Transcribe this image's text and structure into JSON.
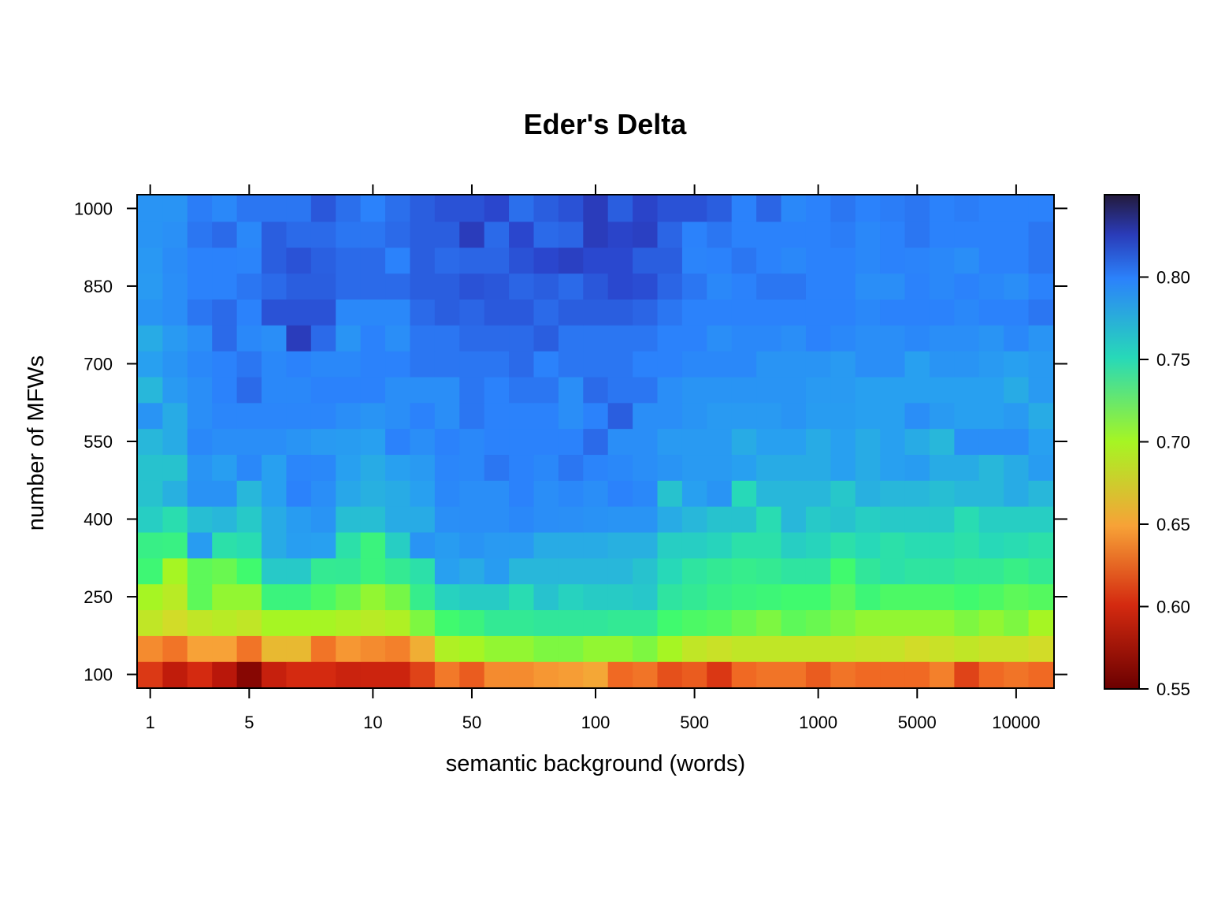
{
  "chart_data": {
    "type": "heatmap",
    "title": "Eder's Delta",
    "xlabel": "semantic background (words)",
    "ylabel": "number of MFWs",
    "x_ticks": [
      {
        "label": "1",
        "col": 0.5
      },
      {
        "label": "5",
        "col": 4.5
      },
      {
        "label": "10",
        "col": 9.5
      },
      {
        "label": "50",
        "col": 13.5
      },
      {
        "label": "100",
        "col": 18.5
      },
      {
        "label": "500",
        "col": 22.5
      },
      {
        "label": "1000",
        "col": 27.5
      },
      {
        "label": "5000",
        "col": 31.5
      },
      {
        "label": "10000",
        "col": 35.5
      }
    ],
    "y_ticks": [
      {
        "label": "100",
        "value": 100
      },
      {
        "label": "250",
        "value": 250
      },
      {
        "label": "400",
        "value": 400
      },
      {
        "label": "550",
        "value": 550
      },
      {
        "label": "700",
        "value": 700
      },
      {
        "label": "850",
        "value": 850
      },
      {
        "label": "1000",
        "value": 1000
      }
    ],
    "n_cols": 37,
    "y_values": [
      100,
      150,
      200,
      250,
      300,
      350,
      400,
      450,
      500,
      550,
      600,
      650,
      700,
      750,
      800,
      850,
      900,
      950,
      1000
    ],
    "ylim": [
      75,
      1025
    ],
    "colorbar": {
      "range": [
        0.55,
        0.85
      ],
      "ticks": [
        0.55,
        0.6,
        0.65,
        0.7,
        0.75,
        0.8
      ],
      "tick_labels": [
        "0.55",
        "0.60",
        "0.65",
        "0.70",
        "0.75",
        "0.80"
      ]
    },
    "values": [
      [
        0.606,
        0.585,
        0.6,
        0.58,
        0.56,
        0.59,
        0.6,
        0.6,
        0.593,
        0.594,
        0.594,
        0.61,
        0.632,
        0.62,
        0.64,
        0.64,
        0.645,
        0.648,
        0.652,
        0.625,
        0.63,
        0.615,
        0.62,
        0.605,
        0.625,
        0.63,
        0.63,
        0.62,
        0.63,
        0.625,
        0.625,
        0.625,
        0.635,
        0.61,
        0.625,
        0.63,
        0.625
      ],
      [
        0.64,
        0.63,
        0.65,
        0.65,
        0.63,
        0.66,
        0.66,
        0.63,
        0.645,
        0.64,
        0.635,
        0.655,
        0.695,
        0.7,
        0.705,
        0.705,
        0.71,
        0.71,
        0.705,
        0.705,
        0.71,
        0.7,
        0.685,
        0.68,
        0.685,
        0.685,
        0.685,
        0.685,
        0.685,
        0.682,
        0.682,
        0.675,
        0.68,
        0.685,
        0.68,
        0.68,
        0.675
      ],
      [
        0.685,
        0.675,
        0.685,
        0.69,
        0.685,
        0.7,
        0.7,
        0.7,
        0.695,
        0.69,
        0.695,
        0.71,
        0.725,
        0.73,
        0.738,
        0.738,
        0.74,
        0.74,
        0.74,
        0.738,
        0.738,
        0.725,
        0.722,
        0.72,
        0.715,
        0.71,
        0.718,
        0.715,
        0.71,
        0.705,
        0.705,
        0.705,
        0.705,
        0.71,
        0.705,
        0.71,
        0.7
      ],
      [
        0.7,
        0.69,
        0.718,
        0.705,
        0.705,
        0.73,
        0.73,
        0.722,
        0.715,
        0.705,
        0.712,
        0.735,
        0.753,
        0.756,
        0.756,
        0.748,
        0.76,
        0.753,
        0.756,
        0.756,
        0.758,
        0.742,
        0.738,
        0.733,
        0.73,
        0.728,
        0.725,
        0.725,
        0.718,
        0.728,
        0.722,
        0.722,
        0.722,
        0.725,
        0.722,
        0.718,
        0.72
      ],
      [
        0.727,
        0.7,
        0.718,
        0.715,
        0.725,
        0.757,
        0.757,
        0.737,
        0.738,
        0.73,
        0.737,
        0.745,
        0.775,
        0.77,
        0.778,
        0.765,
        0.765,
        0.765,
        0.765,
        0.765,
        0.76,
        0.75,
        0.742,
        0.738,
        0.735,
        0.737,
        0.742,
        0.742,
        0.725,
        0.74,
        0.745,
        0.742,
        0.742,
        0.738,
        0.738,
        0.733,
        0.738
      ],
      [
        0.733,
        0.732,
        0.778,
        0.745,
        0.748,
        0.77,
        0.777,
        0.775,
        0.745,
        0.73,
        0.755,
        0.785,
        0.778,
        0.785,
        0.78,
        0.78,
        0.77,
        0.77,
        0.77,
        0.768,
        0.768,
        0.755,
        0.755,
        0.752,
        0.745,
        0.745,
        0.755,
        0.752,
        0.745,
        0.75,
        0.745,
        0.748,
        0.748,
        0.745,
        0.75,
        0.748,
        0.745
      ],
      [
        0.755,
        0.747,
        0.762,
        0.765,
        0.757,
        0.77,
        0.778,
        0.785,
        0.762,
        0.762,
        0.77,
        0.77,
        0.789,
        0.79,
        0.79,
        0.795,
        0.79,
        0.789,
        0.787,
        0.785,
        0.785,
        0.77,
        0.765,
        0.76,
        0.76,
        0.748,
        0.765,
        0.757,
        0.76,
        0.755,
        0.757,
        0.757,
        0.757,
        0.748,
        0.755,
        0.755,
        0.755
      ],
      [
        0.76,
        0.768,
        0.787,
        0.787,
        0.765,
        0.775,
        0.8,
        0.79,
        0.772,
        0.768,
        0.77,
        0.775,
        0.795,
        0.79,
        0.79,
        0.8,
        0.79,
        0.795,
        0.79,
        0.8,
        0.795,
        0.76,
        0.775,
        0.785,
        0.75,
        0.765,
        0.765,
        0.765,
        0.758,
        0.768,
        0.765,
        0.765,
        0.762,
        0.765,
        0.765,
        0.77,
        0.765
      ],
      [
        0.76,
        0.76,
        0.785,
        0.777,
        0.795,
        0.775,
        0.797,
        0.795,
        0.775,
        0.77,
        0.775,
        0.78,
        0.797,
        0.795,
        0.805,
        0.8,
        0.795,
        0.805,
        0.798,
        0.795,
        0.79,
        0.785,
        0.78,
        0.78,
        0.775,
        0.77,
        0.77,
        0.77,
        0.775,
        0.77,
        0.775,
        0.778,
        0.77,
        0.77,
        0.765,
        0.77,
        0.778
      ],
      [
        0.765,
        0.77,
        0.795,
        0.79,
        0.79,
        0.79,
        0.785,
        0.78,
        0.778,
        0.775,
        0.8,
        0.79,
        0.8,
        0.795,
        0.8,
        0.8,
        0.8,
        0.8,
        0.81,
        0.79,
        0.79,
        0.78,
        0.78,
        0.78,
        0.77,
        0.775,
        0.775,
        0.77,
        0.775,
        0.77,
        0.775,
        0.77,
        0.765,
        0.79,
        0.79,
        0.79,
        0.775
      ],
      [
        0.785,
        0.77,
        0.79,
        0.797,
        0.797,
        0.797,
        0.797,
        0.797,
        0.79,
        0.785,
        0.79,
        0.8,
        0.79,
        0.805,
        0.8,
        0.8,
        0.8,
        0.79,
        0.8,
        0.815,
        0.79,
        0.79,
        0.785,
        0.78,
        0.78,
        0.78,
        0.785,
        0.778,
        0.778,
        0.775,
        0.775,
        0.79,
        0.78,
        0.775,
        0.775,
        0.78,
        0.77
      ],
      [
        0.765,
        0.78,
        0.79,
        0.8,
        0.81,
        0.795,
        0.795,
        0.8,
        0.8,
        0.8,
        0.79,
        0.79,
        0.79,
        0.805,
        0.8,
        0.805,
        0.805,
        0.79,
        0.81,
        0.805,
        0.805,
        0.79,
        0.785,
        0.785,
        0.785,
        0.785,
        0.785,
        0.78,
        0.78,
        0.775,
        0.775,
        0.775,
        0.775,
        0.775,
        0.775,
        0.77,
        0.78
      ],
      [
        0.775,
        0.785,
        0.795,
        0.8,
        0.805,
        0.795,
        0.8,
        0.795,
        0.795,
        0.8,
        0.8,
        0.805,
        0.805,
        0.805,
        0.805,
        0.81,
        0.8,
        0.805,
        0.805,
        0.805,
        0.8,
        0.8,
        0.795,
        0.795,
        0.795,
        0.785,
        0.785,
        0.785,
        0.78,
        0.79,
        0.79,
        0.775,
        0.785,
        0.785,
        0.78,
        0.775,
        0.78
      ],
      [
        0.77,
        0.78,
        0.79,
        0.81,
        0.795,
        0.79,
        0.83,
        0.81,
        0.785,
        0.8,
        0.79,
        0.805,
        0.805,
        0.81,
        0.81,
        0.81,
        0.815,
        0.805,
        0.805,
        0.805,
        0.805,
        0.8,
        0.8,
        0.79,
        0.795,
        0.795,
        0.79,
        0.8,
        0.795,
        0.79,
        0.79,
        0.795,
        0.79,
        0.79,
        0.785,
        0.795,
        0.785
      ],
      [
        0.785,
        0.79,
        0.805,
        0.81,
        0.8,
        0.82,
        0.82,
        0.82,
        0.795,
        0.795,
        0.795,
        0.81,
        0.815,
        0.812,
        0.817,
        0.817,
        0.81,
        0.815,
        0.815,
        0.815,
        0.812,
        0.805,
        0.8,
        0.8,
        0.8,
        0.8,
        0.8,
        0.8,
        0.8,
        0.795,
        0.8,
        0.8,
        0.8,
        0.795,
        0.8,
        0.8,
        0.805
      ],
      [
        0.78,
        0.79,
        0.8,
        0.8,
        0.805,
        0.81,
        0.815,
        0.815,
        0.81,
        0.81,
        0.81,
        0.815,
        0.815,
        0.82,
        0.818,
        0.812,
        0.815,
        0.81,
        0.818,
        0.824,
        0.822,
        0.812,
        0.805,
        0.795,
        0.8,
        0.805,
        0.805,
        0.8,
        0.8,
        0.79,
        0.79,
        0.8,
        0.795,
        0.8,
        0.795,
        0.79,
        0.8
      ],
      [
        0.782,
        0.792,
        0.8,
        0.8,
        0.798,
        0.815,
        0.82,
        0.814,
        0.81,
        0.81,
        0.8,
        0.815,
        0.81,
        0.812,
        0.812,
        0.82,
        0.825,
        0.828,
        0.824,
        0.824,
        0.815,
        0.815,
        0.798,
        0.8,
        0.805,
        0.8,
        0.795,
        0.8,
        0.8,
        0.795,
        0.8,
        0.798,
        0.795,
        0.79,
        0.8,
        0.8,
        0.805
      ],
      [
        0.785,
        0.788,
        0.805,
        0.81,
        0.795,
        0.815,
        0.81,
        0.81,
        0.805,
        0.805,
        0.81,
        0.815,
        0.815,
        0.83,
        0.81,
        0.825,
        0.81,
        0.812,
        0.83,
        0.826,
        0.828,
        0.812,
        0.8,
        0.805,
        0.8,
        0.8,
        0.8,
        0.8,
        0.802,
        0.795,
        0.8,
        0.805,
        0.8,
        0.8,
        0.8,
        0.8,
        0.805
      ],
      [
        0.785,
        0.785,
        0.802,
        0.795,
        0.805,
        0.805,
        0.805,
        0.818,
        0.808,
        0.8,
        0.808,
        0.815,
        0.82,
        0.82,
        0.825,
        0.808,
        0.815,
        0.82,
        0.83,
        0.815,
        0.826,
        0.82,
        0.82,
        0.815,
        0.8,
        0.812,
        0.795,
        0.8,
        0.805,
        0.8,
        0.802,
        0.805,
        0.8,
        0.802,
        0.8,
        0.8,
        0.8
      ]
    ]
  }
}
